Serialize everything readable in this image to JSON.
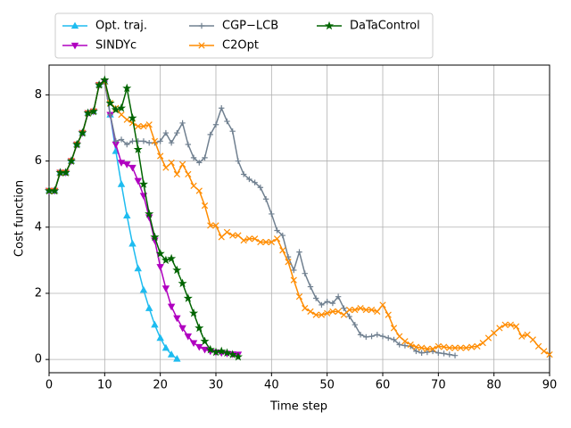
{
  "chart_data": {
    "type": "line",
    "xlabel": "Time step",
    "ylabel": "Cost function",
    "x": [
      0,
      1,
      2,
      3,
      4,
      5,
      6,
      7,
      8,
      9,
      10,
      11,
      12,
      13,
      14,
      15,
      16,
      17,
      18,
      19,
      20,
      21,
      22,
      23,
      24,
      25,
      26,
      27,
      28,
      29,
      30,
      31,
      32,
      33,
      34,
      35,
      36,
      37,
      38,
      39,
      40,
      41,
      42,
      43,
      44,
      45,
      46,
      47,
      48,
      49,
      50,
      51,
      52,
      53,
      54,
      55,
      56,
      57,
      58,
      59,
      60,
      61,
      62,
      63,
      64,
      65,
      66,
      67,
      68,
      69,
      70,
      71,
      72,
      73,
      74,
      75,
      76,
      77,
      78,
      79,
      80,
      81,
      82,
      83,
      84,
      85,
      86,
      87,
      88,
      89,
      90
    ],
    "xlim": [
      0,
      90
    ],
    "xticks": [
      0,
      10,
      20,
      30,
      40,
      50,
      60,
      70,
      80,
      90
    ],
    "ylim": [
      -0.4,
      8.9
    ],
    "yticks": [
      0,
      2,
      4,
      6,
      8
    ],
    "grid": true,
    "legend": "upper center",
    "series": [
      {
        "name": "Opt. traj.",
        "color": "#1ebcf0",
        "marker": "triangle-up",
        "values": [
          5.1,
          5.1,
          5.65,
          5.65,
          6.0,
          6.5,
          6.85,
          7.45,
          7.5,
          8.3,
          8.4,
          7.4,
          6.3,
          5.3,
          4.35,
          3.5,
          2.75,
          2.1,
          1.55,
          1.05,
          0.65,
          0.35,
          0.15,
          0.02,
          null,
          null,
          null,
          null,
          null,
          null,
          null,
          null,
          null,
          null,
          null,
          null,
          null,
          null,
          null,
          null,
          null,
          null,
          null,
          null,
          null,
          null,
          null,
          null,
          null,
          null,
          null,
          null,
          null,
          null,
          null,
          null,
          null,
          null,
          null,
          null,
          null,
          null,
          null,
          null,
          null,
          null,
          null,
          null,
          null,
          null,
          null,
          null,
          null,
          null,
          null,
          null,
          null,
          null,
          null,
          null,
          null,
          null,
          null,
          null,
          null,
          null,
          null,
          null,
          null,
          null,
          null
        ]
      },
      {
        "name": "SINDYc",
        "color": "#b000c0",
        "marker": "triangle-down",
        "values": [
          5.1,
          5.1,
          5.65,
          5.65,
          6.0,
          6.5,
          6.85,
          7.45,
          7.5,
          8.3,
          8.4,
          7.4,
          6.5,
          5.95,
          5.9,
          5.8,
          5.4,
          4.95,
          4.3,
          3.6,
          2.8,
          2.15,
          1.6,
          1.25,
          0.95,
          0.7,
          0.5,
          0.38,
          0.3,
          0.25,
          0.22,
          0.2,
          0.18,
          0.16,
          0.15,
          null,
          null,
          null,
          null,
          null,
          null,
          null,
          null,
          null,
          null,
          null,
          null,
          null,
          null,
          null,
          null,
          null,
          null,
          null,
          null,
          null,
          null,
          null,
          null,
          null,
          null,
          null,
          null,
          null,
          null,
          null,
          null,
          null,
          null,
          null,
          null,
          null,
          null,
          null,
          null,
          null,
          null,
          null,
          null,
          null,
          null,
          null,
          null,
          null,
          null,
          null,
          null,
          null,
          null,
          null,
          null
        ]
      },
      {
        "name": "CGP−LCB",
        "color": "#708090",
        "marker": "plus",
        "values": [
          5.1,
          5.1,
          5.65,
          5.65,
          6.0,
          6.5,
          6.85,
          7.45,
          7.5,
          8.3,
          8.4,
          7.4,
          6.6,
          6.65,
          6.5,
          6.6,
          6.6,
          6.6,
          6.55,
          6.55,
          6.6,
          6.85,
          6.55,
          6.85,
          7.15,
          6.5,
          6.1,
          5.95,
          6.1,
          6.8,
          7.1,
          7.6,
          7.2,
          6.9,
          6.0,
          5.6,
          5.45,
          5.35,
          5.2,
          4.85,
          4.4,
          3.9,
          3.75,
          3.1,
          2.7,
          3.25,
          2.6,
          2.2,
          1.85,
          1.65,
          1.75,
          1.7,
          1.9,
          1.55,
          1.3,
          1.05,
          0.75,
          0.68,
          0.7,
          0.75,
          0.7,
          0.65,
          0.6,
          0.45,
          0.42,
          0.4,
          0.25,
          0.2,
          0.22,
          0.25,
          0.2,
          0.18,
          0.15,
          0.12,
          null,
          null,
          null,
          null,
          null,
          null,
          null,
          null,
          null,
          null,
          null,
          null,
          null,
          null,
          null,
          null,
          null
        ]
      },
      {
        "name": "C2Opt",
        "color": "#ff8c00",
        "marker": "x",
        "values": [
          5.1,
          5.1,
          5.65,
          5.65,
          6.0,
          6.5,
          6.85,
          7.45,
          7.5,
          8.3,
          8.4,
          7.75,
          7.6,
          7.4,
          7.25,
          7.15,
          7.05,
          7.05,
          7.1,
          6.6,
          6.15,
          5.8,
          5.95,
          5.6,
          5.9,
          5.6,
          5.25,
          5.1,
          4.65,
          4.05,
          4.05,
          3.7,
          3.85,
          3.75,
          3.75,
          3.6,
          3.65,
          3.65,
          3.55,
          3.55,
          3.55,
          3.65,
          3.3,
          2.95,
          2.4,
          1.9,
          1.55,
          1.45,
          1.35,
          1.35,
          1.4,
          1.45,
          1.45,
          1.35,
          1.5,
          1.5,
          1.55,
          1.5,
          1.5,
          1.45,
          1.65,
          1.35,
          0.95,
          0.7,
          0.55,
          0.45,
          0.38,
          0.35,
          0.32,
          0.32,
          0.4,
          0.38,
          0.35,
          0.35,
          0.35,
          0.35,
          0.38,
          0.4,
          0.5,
          0.65,
          0.8,
          0.95,
          1.05,
          1.05,
          1.0,
          0.7,
          0.75,
          0.6,
          0.4,
          0.25,
          0.15
        ]
      },
      {
        "name": "DaTaControl",
        "color": "#006400",
        "marker": "star",
        "values": [
          5.1,
          5.1,
          5.65,
          5.65,
          6.0,
          6.5,
          6.85,
          7.45,
          7.5,
          8.3,
          8.45,
          7.75,
          7.55,
          7.6,
          8.2,
          7.3,
          6.35,
          5.3,
          4.4,
          3.7,
          3.2,
          3.0,
          3.05,
          2.7,
          2.3,
          1.85,
          1.4,
          0.95,
          0.55,
          0.3,
          0.22,
          0.25,
          0.2,
          0.15,
          0.08,
          null,
          null,
          null,
          null,
          null,
          null,
          null,
          null,
          null,
          null,
          null,
          null,
          null,
          null,
          null,
          null,
          null,
          null,
          null,
          null,
          null,
          null,
          null,
          null,
          null,
          null,
          null,
          null,
          null,
          null,
          null,
          null,
          null,
          null,
          null,
          null,
          null,
          null,
          null,
          null,
          null,
          null,
          null,
          null,
          null,
          null,
          null,
          null,
          null,
          null,
          null,
          null,
          null,
          null,
          null,
          null
        ]
      }
    ]
  }
}
